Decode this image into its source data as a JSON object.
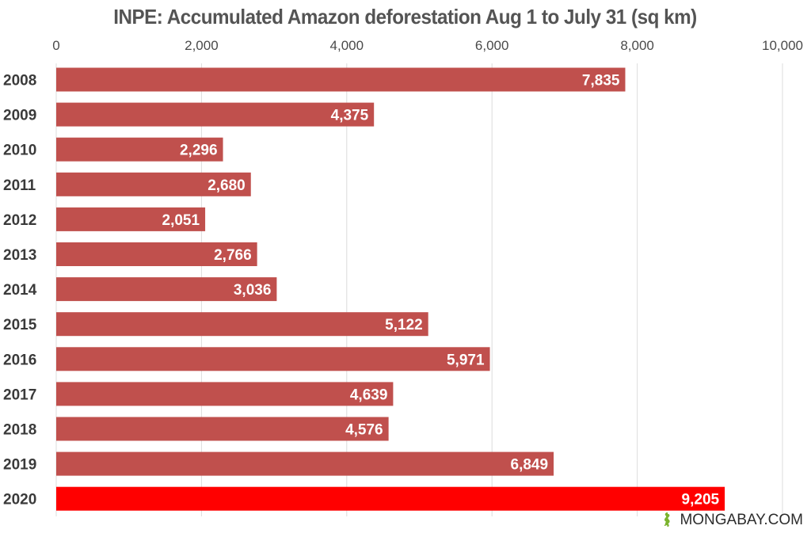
{
  "chart_data": {
    "type": "bar",
    "orientation": "horizontal",
    "title": "INPE: Accumulated Amazon deforestation Aug 1 to July 31 (sq km)",
    "categories": [
      "2008",
      "2009",
      "2010",
      "2011",
      "2012",
      "2013",
      "2014",
      "2015",
      "2016",
      "2017",
      "2018",
      "2019",
      "2020"
    ],
    "values": [
      7835,
      4375,
      2296,
      2680,
      2051,
      2766,
      3036,
      5122,
      5971,
      4639,
      4576,
      6849,
      9205
    ],
    "value_labels": [
      "7,835",
      "4,375",
      "2,296",
      "2,680",
      "2,051",
      "2,766",
      "3,036",
      "5,122",
      "5,971",
      "4,639",
      "4,576",
      "6,849",
      "9,205"
    ],
    "xlim": [
      0,
      10000
    ],
    "ticks": [
      0,
      2000,
      4000,
      6000,
      8000,
      10000
    ],
    "tick_labels": [
      "0",
      "2,000",
      "4,000",
      "6,000",
      "8,000",
      "10,000"
    ],
    "x_axis_position": "top",
    "grid": true,
    "bar_color": "#c0504d",
    "highlight_color": "#ff0000",
    "highlight_category": "2020",
    "grid_color": "#dcdcdc"
  },
  "credit": {
    "text": "MONGABAY.COM",
    "icon": "gecko-logo-icon",
    "icon_color": "#7bb32e"
  }
}
